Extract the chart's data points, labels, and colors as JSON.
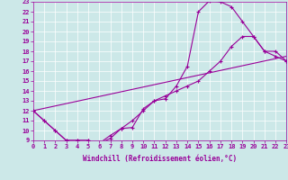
{
  "xlabel": "Windchill (Refroidissement éolien,°C)",
  "bg_color": "#cce8e8",
  "line_color": "#990099",
  "marker": "+",
  "line1_x": [
    0,
    1,
    2,
    3,
    4,
    5,
    6,
    7,
    8,
    9,
    10,
    11,
    12,
    13,
    14,
    15,
    16,
    17,
    18,
    19,
    20,
    21,
    22,
    23
  ],
  "line1_y": [
    12,
    11,
    10,
    9,
    9,
    9,
    8.7,
    9.2,
    10.2,
    10.3,
    12.2,
    13.0,
    13.2,
    14.5,
    16.5,
    22.0,
    23.1,
    23.0,
    22.5,
    21.0,
    19.5,
    18.0,
    17.5,
    17.0
  ],
  "line2_x": [
    0,
    1,
    2,
    3,
    4,
    5,
    6,
    7,
    8,
    9,
    10,
    11,
    12,
    13,
    14,
    15,
    16,
    17,
    18,
    19,
    20,
    21,
    22,
    23
  ],
  "line2_y": [
    12,
    11,
    10,
    9,
    9,
    9,
    8.7,
    9.5,
    10.2,
    11.0,
    12.0,
    13.0,
    13.5,
    14.0,
    14.5,
    15.0,
    16.0,
    17.0,
    18.5,
    19.5,
    19.5,
    18.0,
    18.0,
    17.0
  ],
  "line3_x": [
    0,
    23
  ],
  "line3_y": [
    12,
    17.5
  ],
  "xlim": [
    0,
    23
  ],
  "ylim": [
    9,
    23
  ],
  "yticks": [
    9,
    10,
    11,
    12,
    13,
    14,
    15,
    16,
    17,
    18,
    19,
    20,
    21,
    22,
    23
  ],
  "xticks": [
    0,
    1,
    2,
    3,
    4,
    5,
    6,
    7,
    8,
    9,
    10,
    11,
    12,
    13,
    14,
    15,
    16,
    17,
    18,
    19,
    20,
    21,
    22,
    23
  ],
  "label_fontsize": 5.5,
  "tick_fontsize": 5.0
}
